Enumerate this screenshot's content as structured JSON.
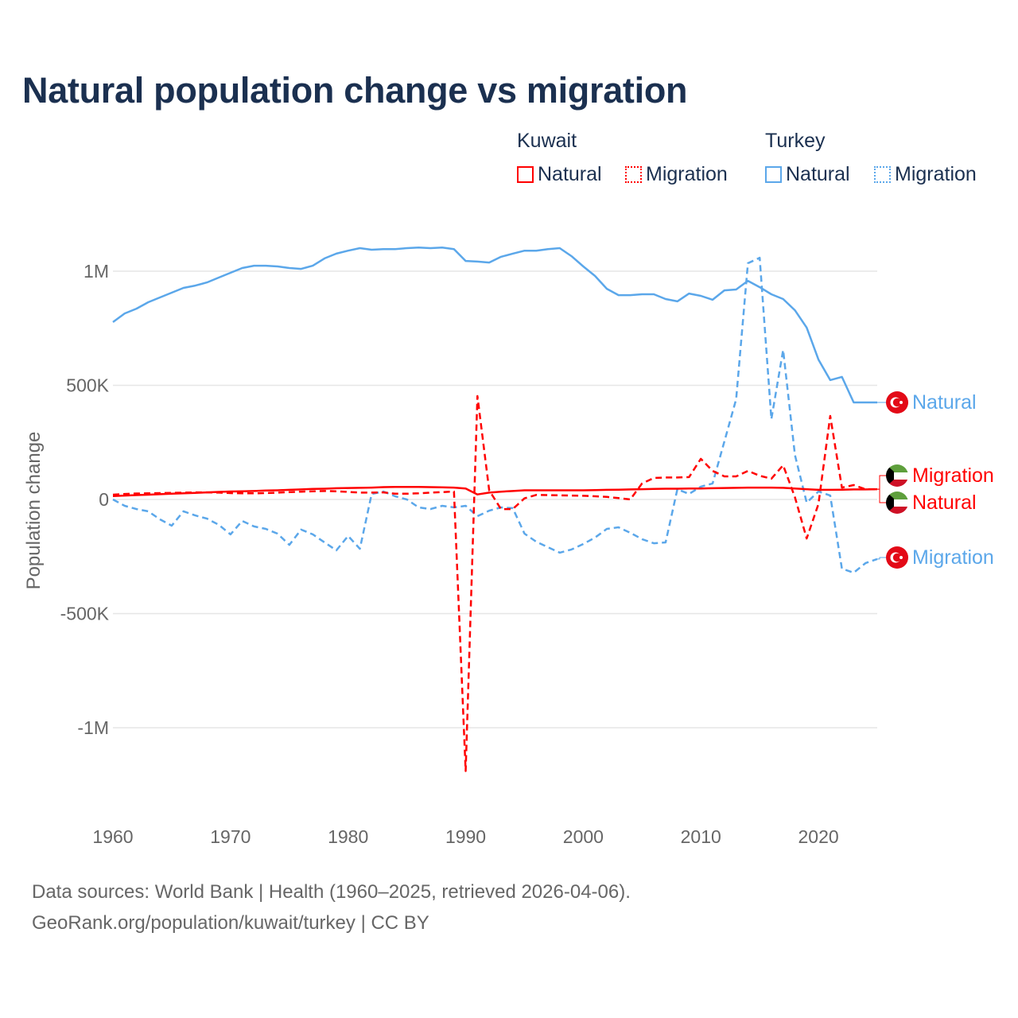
{
  "chart_data": {
    "type": "line",
    "title": "Natural population change vs migration",
    "xlabel": "",
    "ylabel": "Population change",
    "xlim": [
      1960,
      2025
    ],
    "ylim": [
      -1250000,
      1200000
    ],
    "grid": true,
    "legend_placement": "top-right",
    "y_ticks": [
      {
        "value": 1000000,
        "label": "1M"
      },
      {
        "value": 500000,
        "label": "500K"
      },
      {
        "value": 0,
        "label": "0"
      },
      {
        "value": -500000,
        "label": "-500K"
      },
      {
        "value": -1000000,
        "label": "-1M"
      }
    ],
    "x_ticks": [
      {
        "value": 1960,
        "label": "1960"
      },
      {
        "value": 1970,
        "label": "1970"
      },
      {
        "value": 1980,
        "label": "1980"
      },
      {
        "value": 1990,
        "label": "1990"
      },
      {
        "value": 2000,
        "label": "2000"
      },
      {
        "value": 2010,
        "label": "2010"
      },
      {
        "value": 2020,
        "label": "2020"
      }
    ],
    "x_start": 1960,
    "series": [
      {
        "name": "Turkey Natural",
        "country": "Turkey",
        "kind": "Natural",
        "color": "#5ba7ea",
        "dashed": false,
        "end_label": "Natural",
        "flag": "turkey",
        "values": [
          777000,
          815000,
          836000,
          864000,
          885000,
          906000,
          927000,
          937000,
          951000,
          972000,
          993000,
          1014000,
          1024000,
          1024000,
          1021000,
          1014000,
          1010000,
          1024000,
          1056000,
          1077000,
          1090000,
          1101000,
          1094000,
          1097000,
          1097000,
          1101000,
          1104000,
          1101000,
          1104000,
          1097000,
          1045000,
          1042000,
          1038000,
          1063000,
          1077000,
          1090000,
          1090000,
          1097000,
          1101000,
          1066000,
          1021000,
          979000,
          923000,
          895000,
          895000,
          899000,
          899000,
          878000,
          868000,
          902000,
          892000,
          875000,
          916000,
          920000,
          958000,
          930000,
          899000,
          878000,
          829000,
          753000,
          613000,
          523000,
          537000,
          425000,
          425000,
          425000
        ]
      },
      {
        "name": "Turkey Migration",
        "country": "Turkey",
        "kind": "Migration",
        "color": "#5ba7ea",
        "dashed": true,
        "end_label": "Migration",
        "flag": "turkey",
        "values": [
          0,
          -28000,
          -42000,
          -52000,
          -87000,
          -115000,
          -52000,
          -70000,
          -84000,
          -111000,
          -153000,
          -94000,
          -118000,
          -129000,
          -150000,
          -199000,
          -132000,
          -153000,
          -188000,
          -223000,
          -160000,
          -216000,
          24000,
          35000,
          14000,
          0,
          -35000,
          -42000,
          -28000,
          -35000,
          -28000,
          -73000,
          -49000,
          -35000,
          -38000,
          -150000,
          -185000,
          -209000,
          -233000,
          -219000,
          -195000,
          -167000,
          -129000,
          -122000,
          -146000,
          -174000,
          -192000,
          -188000,
          45000,
          24000,
          56000,
          70000,
          254000,
          439000,
          1035000,
          1059000,
          352000,
          655000,
          195000,
          -14000,
          35000,
          17000,
          -303000,
          -321000,
          -279000,
          -261000
        ]
      },
      {
        "name": "Kuwait Natural",
        "country": "Kuwait",
        "kind": "Natural",
        "color": "#ff0000",
        "dashed": false,
        "end_label": "Natural",
        "flag": "kuwait",
        "values": [
          15000,
          17000,
          19000,
          21000,
          23000,
          25000,
          27000,
          29000,
          31000,
          33000,
          35000,
          36000,
          37000,
          39000,
          40000,
          42000,
          44000,
          46000,
          47000,
          49000,
          50000,
          51000,
          52000,
          54000,
          55000,
          55000,
          55000,
          54000,
          53000,
          52000,
          48000,
          22000,
          30000,
          34000,
          37000,
          40000,
          40000,
          40000,
          40000,
          40000,
          40000,
          41000,
          42000,
          43000,
          44000,
          45000,
          46000,
          47000,
          47000,
          48000,
          48000,
          49000,
          50000,
          51000,
          52000,
          52000,
          52000,
          51000,
          48000,
          45000,
          42000,
          42000,
          43000,
          44000,
          44000,
          45000
        ]
      },
      {
        "name": "Kuwait Migration",
        "country": "Kuwait",
        "kind": "Migration",
        "color": "#ff0000",
        "dashed": true,
        "end_label": "Migration",
        "flag": "kuwait",
        "values": [
          21000,
          24000,
          26000,
          27000,
          28000,
          29000,
          30000,
          31000,
          31000,
          30000,
          28000,
          27000,
          27000,
          28000,
          30000,
          32000,
          34000,
          36000,
          37000,
          36000,
          33000,
          30000,
          30000,
          31000,
          25000,
          25000,
          27000,
          30000,
          32000,
          35000,
          -1190000,
          453000,
          40000,
          -42000,
          -42000,
          5000,
          20000,
          19000,
          18000,
          17000,
          16000,
          14000,
          11000,
          6000,
          0,
          70000,
          94000,
          96000,
          96000,
          98000,
          178000,
          125000,
          101000,
          101000,
          125000,
          104000,
          91000,
          150000,
          10000,
          -171000,
          -20000,
          366000,
          52000,
          63000,
          45000,
          45000
        ]
      }
    ],
    "legend": {
      "groups": [
        {
          "title": "Kuwait",
          "items": [
            "Natural",
            "Migration"
          ]
        },
        {
          "title": "Turkey",
          "items": [
            "Natural",
            "Migration"
          ]
        }
      ]
    }
  },
  "footer": {
    "line1": "Data sources: World Bank | Health (1960–2025, retrieved 2026-04-06).",
    "line2": "GeoRank.org/population/kuwait/turkey | CC BY"
  }
}
